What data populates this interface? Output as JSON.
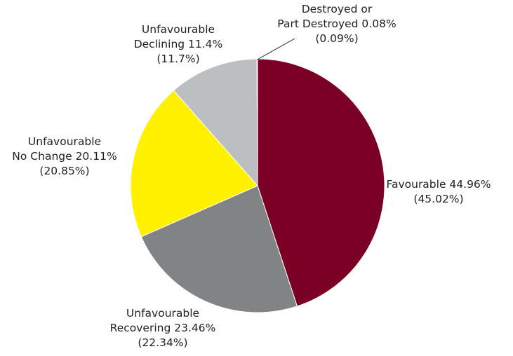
{
  "chart_data": {
    "type": "pie",
    "title": "",
    "slices": [
      {
        "name": "Favourable",
        "value": 44.96,
        "value_text": "44.96%",
        "previous_value": 45.02,
        "previous_text": "(45.02%)",
        "color": "#7a0026",
        "label_lines": [
          "Favourable 44.96%",
          "(45.02%)"
        ]
      },
      {
        "name": "Unfavourable Recovering",
        "value": 23.46,
        "value_text": "23.46%",
        "previous_value": 22.34,
        "previous_text": "(22.34%)",
        "color": "#828385",
        "label_lines": [
          "Unfavourable",
          "Recovering 23.46%",
          "(22.34%)"
        ]
      },
      {
        "name": "Unfavourable No Change",
        "value": 20.11,
        "value_text": "20.11%",
        "previous_value": 20.85,
        "previous_text": "(20.85%)",
        "color": "#fff100",
        "label_lines": [
          "Unfavourable",
          "No Change 20.11%",
          "(20.85%)"
        ]
      },
      {
        "name": "Unfavourable Declining",
        "value": 11.4,
        "value_text": "11.4%",
        "previous_value": 11.7,
        "previous_text": "(11.7%)",
        "color": "#bcbec0",
        "label_lines": [
          "Unfavourable",
          "Declining 11.4%",
          "(11.7%)"
        ]
      },
      {
        "name": "Destroyed or Part Destroyed",
        "value": 0.08,
        "value_text": "0.08%",
        "previous_value": 0.09,
        "previous_text": "(0.09%)",
        "color": "#58595b",
        "label_lines": [
          "Destroyed or",
          "Part Destroyed 0.08%",
          "(0.09%)"
        ]
      }
    ],
    "start": "12 o'clock",
    "direction": "clockwise",
    "legend": "none",
    "leader_line_color": "#231f20"
  }
}
